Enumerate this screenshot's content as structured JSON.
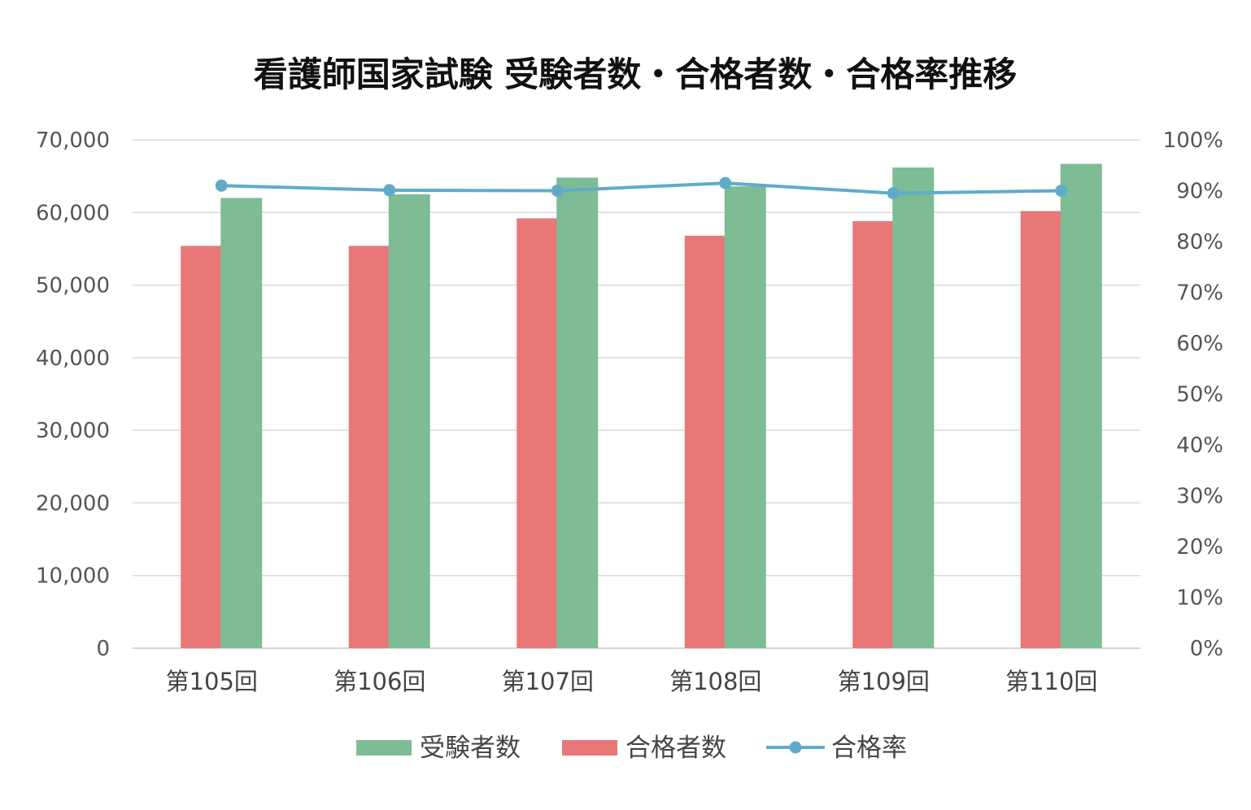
{
  "chart_data": {
    "type": "bar",
    "title": "看護師国家試験 受験者数・合格者数・合格率推移",
    "categories": [
      "第105回",
      "第106回",
      "第107回",
      "第108回",
      "第109回",
      "第110回"
    ],
    "series": [
      {
        "name": "合格者数",
        "kind": "bar",
        "axis": "left",
        "color": "#e87878",
        "values": [
          55400,
          55400,
          59200,
          56800,
          58800,
          60200
        ]
      },
      {
        "name": "受験者数",
        "kind": "bar",
        "axis": "left",
        "color": "#7dbc94",
        "values": [
          62000,
          62500,
          64800,
          63600,
          66200,
          66700
        ]
      },
      {
        "name": "合格率",
        "kind": "line",
        "axis": "right",
        "color": "#5fabc9",
        "values": [
          91.0,
          90.1,
          90.0,
          91.5,
          89.5,
          90.0
        ]
      }
    ],
    "left_axis": {
      "min": 0,
      "max": 70000,
      "step": 10000,
      "tick_labels": [
        "0",
        "10,000",
        "20,000",
        "30,000",
        "40,000",
        "50,000",
        "60,000",
        "70,000"
      ]
    },
    "right_axis": {
      "min": 0,
      "max": 100,
      "step": 10,
      "unit": "%",
      "tick_labels": [
        "0%",
        "10%",
        "20%",
        "30%",
        "40%",
        "50%",
        "60%",
        "70%",
        "80%",
        "90%",
        "100%"
      ]
    },
    "legend": {
      "placement": "bottom",
      "items": [
        "受験者数",
        "合格者数",
        "合格率"
      ]
    },
    "grid": true,
    "gridline_color": "#d9d9d9"
  }
}
